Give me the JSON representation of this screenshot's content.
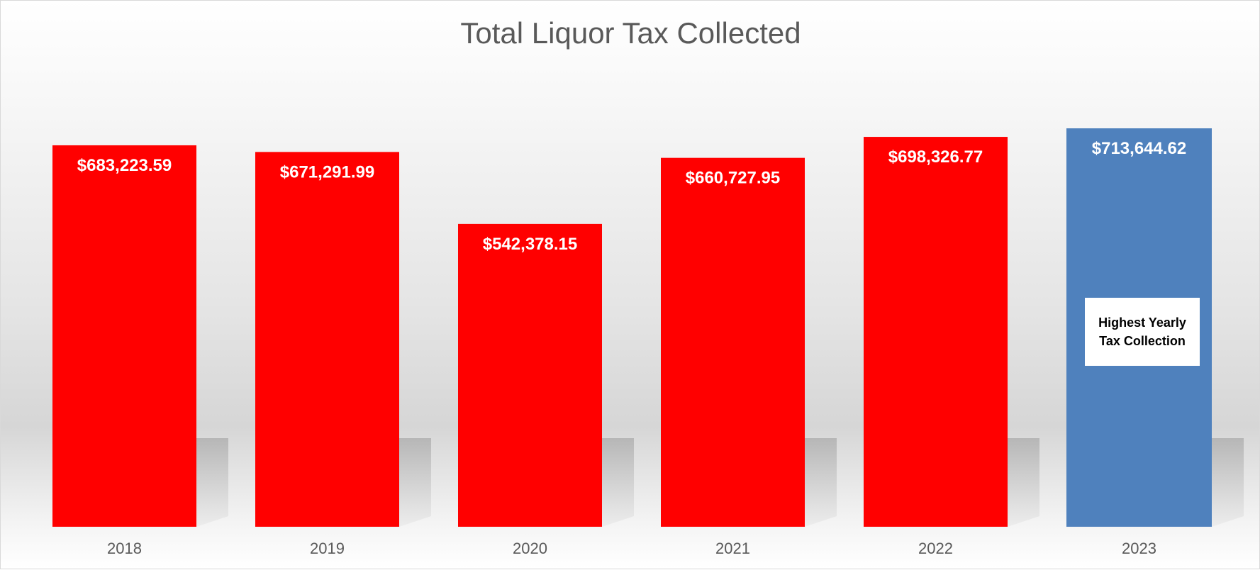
{
  "chart_data": {
    "type": "bar",
    "title": "Total Liquor Tax Collected",
    "xlabel": "",
    "ylabel": "",
    "categories": [
      "2018",
      "2019",
      "2020",
      "2021",
      "2022",
      "2023"
    ],
    "values": [
      683223.59,
      671291.99,
      542378.15,
      660727.95,
      698326.77,
      713644.62
    ],
    "data_labels": [
      "$683,223.59",
      "$671,291.99",
      "$542,378.15",
      "$660,727.95",
      "$698,326.77",
      "$713,644.62"
    ],
    "bar_colors": [
      "#ff0000",
      "#ff0000",
      "#ff0000",
      "#ff0000",
      "#ff0000",
      "#4f81bd"
    ],
    "ylim": [
      0,
      713644.62
    ],
    "grid": false,
    "legend": "none",
    "annotation": {
      "category": "2023",
      "text": "Highest Yearly Tax Collection"
    }
  }
}
